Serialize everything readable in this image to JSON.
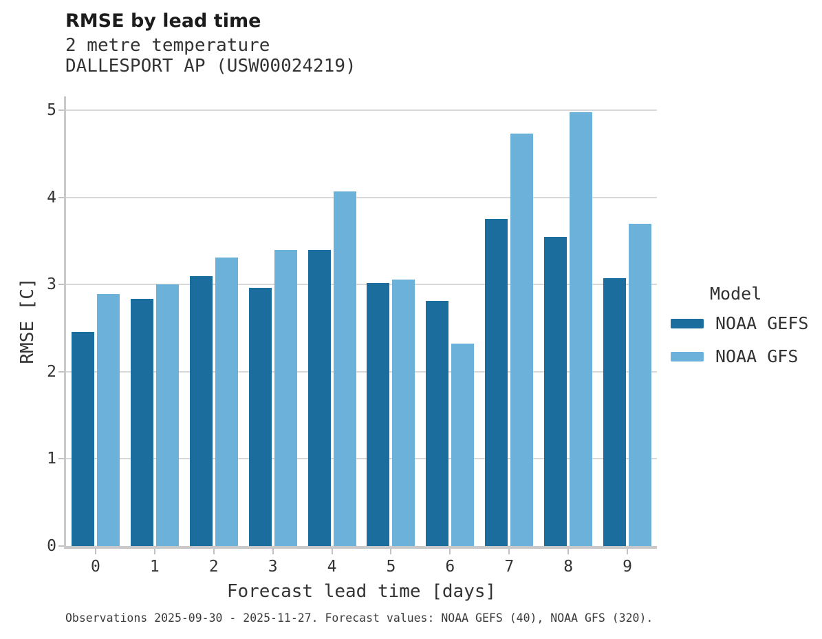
{
  "header": {
    "title": "RMSE by lead time",
    "subtitle_line1": "2 metre temperature",
    "subtitle_line2": "DALLESPORT AP (USW00024219)"
  },
  "legend": {
    "title": "Model",
    "entries": [
      {
        "label": "NOAA GEFS",
        "color": "#1a6d9c"
      },
      {
        "label": "NOAA GFS",
        "color": "#6bb1da"
      }
    ]
  },
  "footer": {
    "text": "Observations 2025-09-30 - 2025-11-27. Forecast values: NOAA GEFS (40), NOAA GFS (320)."
  },
  "chart_data": {
    "type": "bar",
    "title": "RMSE by lead time",
    "subtitle": [
      "2 metre temperature",
      "DALLESPORT AP (USW00024219)"
    ],
    "categories": [
      "0",
      "1",
      "2",
      "3",
      "4",
      "5",
      "6",
      "7",
      "8",
      "9"
    ],
    "series": [
      {
        "name": "NOAA GEFS",
        "color": "#1a6d9c",
        "values": [
          2.46,
          2.84,
          3.1,
          2.96,
          3.4,
          3.02,
          2.81,
          3.75,
          3.55,
          3.07
        ]
      },
      {
        "name": "NOAA GFS",
        "color": "#6bb1da",
        "values": [
          2.89,
          3.0,
          3.31,
          3.4,
          4.07,
          3.06,
          2.32,
          4.73,
          4.98,
          3.7
        ]
      }
    ],
    "xlabel": "Forecast lead time [days]",
    "ylabel": "RMSE [C]",
    "ylim": [
      0,
      5.16
    ],
    "yticks": [
      0,
      1,
      2,
      3,
      4,
      5
    ],
    "grid": true,
    "legend_title": "Model",
    "legend_position": "right",
    "caption": "Observations 2025-09-30 - 2025-11-27. Forecast values: NOAA GEFS (40), NOAA GFS (320)."
  }
}
